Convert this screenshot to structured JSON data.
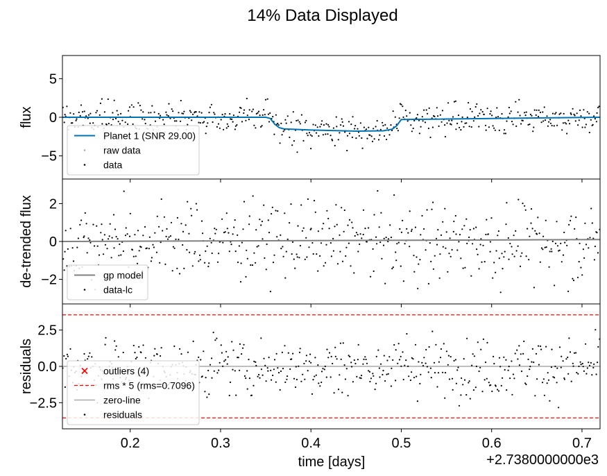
{
  "figure": {
    "title": "14% Data Displayed",
    "x_offset_label": "+2.7380000000e3",
    "xlabel": "time [days]"
  },
  "chart_data": [
    {
      "type": "scatter",
      "panel": "flux",
      "ylabel": "flux",
      "xlim": [
        0.125,
        0.72
      ],
      "ylim": [
        -8.0,
        8.0
      ],
      "yticks": [
        5,
        0,
        -5
      ],
      "ytick_labels": [
        "5",
        "0",
        "−5"
      ],
      "noise_sigma": 1.0,
      "show_xtick_labels": false,
      "legend_position": "lower-left",
      "series": [
        {
          "name": "Planet 1 (SNR 29.00)",
          "kind": "line",
          "color": "#0072b2",
          "x": [
            0.125,
            0.35,
            0.355,
            0.36,
            0.365,
            0.37,
            0.4,
            0.45,
            0.48,
            0.49,
            0.495,
            0.5,
            0.72
          ],
          "y": [
            0,
            0,
            -0.15,
            -0.9,
            -1.35,
            -1.5,
            -1.65,
            -1.8,
            -1.75,
            -1.55,
            -1.1,
            -0.3,
            0
          ]
        },
        {
          "name": "raw data",
          "kind": "points",
          "color": "#aaaaaa"
        },
        {
          "name": "data",
          "kind": "points",
          "color": "#000000"
        }
      ]
    },
    {
      "type": "scatter",
      "panel": "detrended",
      "ylabel": "de-trended flux",
      "xlim": [
        0.125,
        0.72
      ],
      "ylim": [
        -3.3,
        3.3
      ],
      "yticks": [
        2,
        0,
        -2
      ],
      "ytick_labels": [
        "2",
        "0",
        "−2"
      ],
      "noise_sigma": 1.0,
      "show_xtick_labels": false,
      "legend_position": "lower-left",
      "series": [
        {
          "name": "gp model",
          "kind": "line",
          "color": "#808080",
          "x": [
            0.125,
            0.72
          ],
          "y": [
            0.0,
            0.1
          ]
        },
        {
          "name": "data-lc",
          "kind": "points",
          "color": "#000000"
        }
      ]
    },
    {
      "type": "scatter",
      "panel": "residuals",
      "ylabel": "residuals",
      "xlim": [
        0.125,
        0.72
      ],
      "ylim": [
        -4.3,
        4.3
      ],
      "yticks": [
        2.5,
        0.0,
        -2.5
      ],
      "ytick_labels": [
        "2.5",
        "0.0",
        "−2.5"
      ],
      "noise_sigma": 1.0,
      "show_xtick_labels": true,
      "xticks": [
        0.2,
        0.3,
        0.4,
        0.5,
        0.6,
        0.7
      ],
      "xtick_labels": [
        "0.2",
        "0.3",
        "0.4",
        "0.5",
        "0.6",
        "0.7"
      ],
      "legend_position": "lower-left",
      "series": [
        {
          "name": "outliers (4)",
          "kind": "marker-x",
          "color": "#ff0000"
        },
        {
          "name": "rms * 5 (rms=0.7096)",
          "kind": "hline-pair",
          "color": "#ff0000",
          "value": 3.548
        },
        {
          "name": "zero-line",
          "kind": "hline",
          "color": "#aaaaaa",
          "value": 0
        },
        {
          "name": "residuals",
          "kind": "points",
          "color": "#000000"
        }
      ]
    }
  ]
}
